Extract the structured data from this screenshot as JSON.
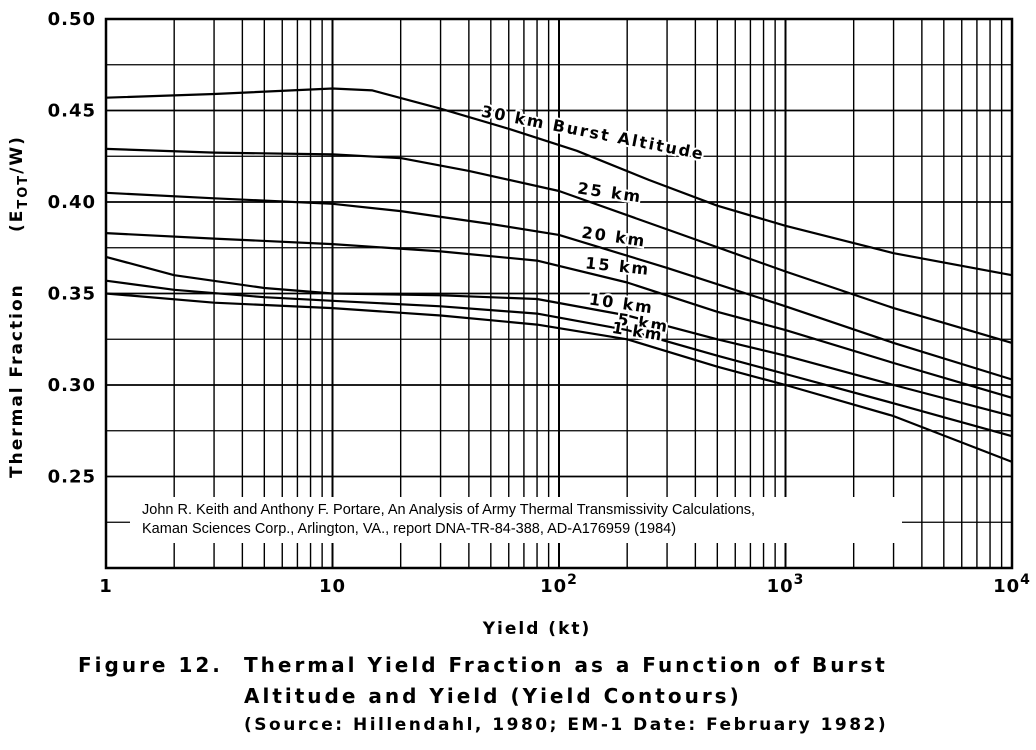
{
  "chart_data": {
    "type": "line",
    "xscale": "log",
    "xlim": [
      1,
      10000
    ],
    "ylim": [
      0.2,
      0.5
    ],
    "xlabel": "Yield (kt)",
    "ylabel": "Thermal Fraction",
    "ylabel_sub": "(E",
    "ylabel_sub2": "TOT",
    "ylabel_sub3": "/W)",
    "x_ticks": [
      {
        "value": 1,
        "label": "1"
      },
      {
        "value": 10,
        "label": "10"
      },
      {
        "value": 100,
        "label": "10",
        "exp": "2"
      },
      {
        "value": 1000,
        "label": "10",
        "exp": "3"
      },
      {
        "value": 10000,
        "label": "10",
        "exp": "4"
      }
    ],
    "y_ticks": [
      {
        "value": 0.25,
        "label": "0.25"
      },
      {
        "value": 0.3,
        "label": "0.30"
      },
      {
        "value": 0.35,
        "label": "0.35"
      },
      {
        "value": 0.4,
        "label": "0.40"
      },
      {
        "value": 0.45,
        "label": "0.45"
      },
      {
        "value": 0.5,
        "label": "0.50"
      }
    ],
    "grid": true,
    "series": [
      {
        "name": "30 km Burst Altitude",
        "points": [
          [
            1,
            0.457
          ],
          [
            3,
            0.459
          ],
          [
            10,
            0.462
          ],
          [
            15,
            0.461
          ],
          [
            30,
            0.451
          ],
          [
            60,
            0.44
          ],
          [
            120,
            0.428
          ],
          [
            250,
            0.412
          ],
          [
            500,
            0.398
          ],
          [
            1000,
            0.387
          ],
          [
            3000,
            0.372
          ],
          [
            10000,
            0.36
          ]
        ]
      },
      {
        "name": "25 km",
        "points": [
          [
            1,
            0.429
          ],
          [
            3,
            0.427
          ],
          [
            10,
            0.426
          ],
          [
            20,
            0.424
          ],
          [
            40,
            0.417
          ],
          [
            100,
            0.406
          ],
          [
            300,
            0.385
          ],
          [
            1000,
            0.362
          ],
          [
            3000,
            0.342
          ],
          [
            10000,
            0.323
          ]
        ]
      },
      {
        "name": "20 km",
        "points": [
          [
            1,
            0.405
          ],
          [
            3,
            0.402
          ],
          [
            10,
            0.399
          ],
          [
            20,
            0.395
          ],
          [
            50,
            0.388
          ],
          [
            100,
            0.382
          ],
          [
            300,
            0.364
          ],
          [
            1000,
            0.343
          ],
          [
            3000,
            0.323
          ],
          [
            10000,
            0.303
          ]
        ]
      },
      {
        "name": "15 km",
        "points": [
          [
            1,
            0.383
          ],
          [
            3,
            0.38
          ],
          [
            10,
            0.377
          ],
          [
            30,
            0.373
          ],
          [
            80,
            0.368
          ],
          [
            200,
            0.356
          ],
          [
            500,
            0.34
          ],
          [
            1000,
            0.33
          ],
          [
            3000,
            0.312
          ],
          [
            10000,
            0.293
          ]
        ]
      },
      {
        "name": "10 km",
        "points": [
          [
            1,
            0.37
          ],
          [
            2,
            0.36
          ],
          [
            5,
            0.353
          ],
          [
            10,
            0.35
          ],
          [
            30,
            0.349
          ],
          [
            80,
            0.347
          ],
          [
            200,
            0.338
          ],
          [
            500,
            0.325
          ],
          [
            1000,
            0.316
          ],
          [
            3000,
            0.3
          ],
          [
            10000,
            0.283
          ]
        ]
      },
      {
        "name": "5 km",
        "points": [
          [
            1,
            0.357
          ],
          [
            2,
            0.352
          ],
          [
            5,
            0.348
          ],
          [
            10,
            0.346
          ],
          [
            30,
            0.343
          ],
          [
            80,
            0.339
          ],
          [
            200,
            0.33
          ],
          [
            500,
            0.316
          ],
          [
            1000,
            0.306
          ],
          [
            3000,
            0.29
          ],
          [
            10000,
            0.272
          ]
        ]
      },
      {
        "name": "1 km",
        "points": [
          [
            1,
            0.35
          ],
          [
            3,
            0.345
          ],
          [
            10,
            0.342
          ],
          [
            30,
            0.338
          ],
          [
            80,
            0.333
          ],
          [
            200,
            0.325
          ],
          [
            500,
            0.31
          ],
          [
            1000,
            0.3
          ],
          [
            3000,
            0.283
          ],
          [
            10000,
            0.258
          ]
        ]
      }
    ],
    "curve_labels": [
      {
        "text": "30 km Burst Altitude",
        "x": 45,
        "angle": 11
      },
      {
        "text": "25 km",
        "x": 120,
        "angle": 8
      },
      {
        "text": "20 km",
        "x": 125,
        "angle": 8
      },
      {
        "text": "15 km",
        "x": 130,
        "angle": 6
      },
      {
        "text": "10 km",
        "x": 135,
        "angle": 8
      },
      {
        "text": "5 km",
        "x": 180,
        "angle": 9
      },
      {
        "text": "1 km",
        "x": 170,
        "angle": 9
      }
    ]
  },
  "citation": {
    "line1": "John R. Keith and Anthony F. Portare, An Analysis of Army Thermal Transmissivity Calculations,",
    "line2": "Kaman Sciences Corp., Arlington, VA., report DNA-TR-84-388, AD-A176959 (1984)"
  },
  "caption": {
    "figure_number": "Figure 12.",
    "title_line1": "Thermal Yield Fraction as a Function of Burst",
    "title_line2": "Altitude and Yield (Yield Contours)",
    "source": "(Source: Hillendahl, 1980; EM-1 Date: February 1982)"
  }
}
